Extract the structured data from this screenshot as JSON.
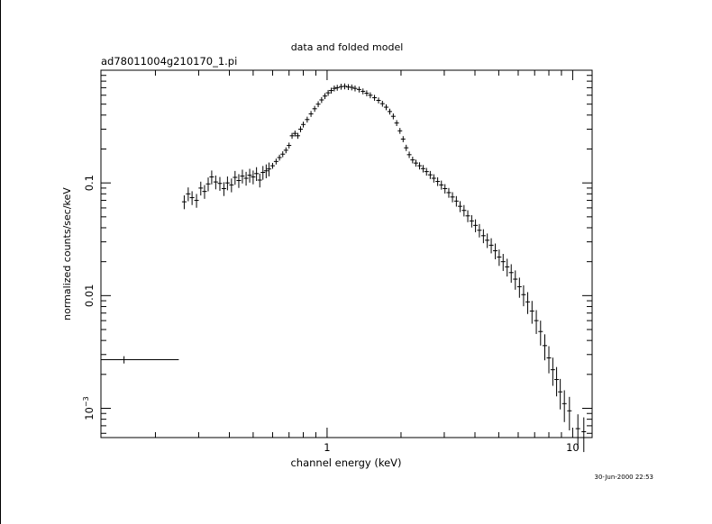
{
  "chart_data": {
    "type": "scatter",
    "title": "data and folded model",
    "subtitle": "ad78011004g210170_1.pi",
    "xlabel": "channel energy (keV)",
    "ylabel": "normalized counts/sec/keV",
    "timestamp": "30-Jun-2000 22:53",
    "x_scale": "log",
    "y_scale": "log",
    "xlim": [
      0.12,
      12.0
    ],
    "ylim": [
      0.00055,
      1.0
    ],
    "x_ticks": [
      {
        "value": 1,
        "label": "1"
      },
      {
        "value": 10,
        "label": "10"
      }
    ],
    "y_ticks": [
      {
        "value": 0.1,
        "label": "0.1"
      },
      {
        "value": 0.01,
        "label": "0.01"
      },
      {
        "value": 0.001,
        "label": "10",
        "sup": "−3"
      }
    ],
    "grid": false,
    "series": [
      {
        "style": "crosses",
        "points": [
          {
            "x": 0.149,
            "y": 0.0027,
            "xlo": 0.12,
            "xhi": 0.249,
            "dy": 0.0002
          },
          {
            "x": 0.262,
            "y": 0.068
          },
          {
            "x": 0.272,
            "y": 0.08
          },
          {
            "x": 0.282,
            "y": 0.074
          },
          {
            "x": 0.294,
            "y": 0.07
          },
          {
            "x": 0.306,
            "y": 0.09
          },
          {
            "x": 0.317,
            "y": 0.084
          },
          {
            "x": 0.328,
            "y": 0.098
          },
          {
            "x": 0.339,
            "y": 0.113
          },
          {
            "x": 0.352,
            "y": 0.102
          },
          {
            "x": 0.366,
            "y": 0.099
          },
          {
            "x": 0.38,
            "y": 0.089
          },
          {
            "x": 0.393,
            "y": 0.1
          },
          {
            "x": 0.408,
            "y": 0.096
          },
          {
            "x": 0.422,
            "y": 0.112
          },
          {
            "x": 0.437,
            "y": 0.105
          },
          {
            "x": 0.452,
            "y": 0.115
          },
          {
            "x": 0.468,
            "y": 0.11
          },
          {
            "x": 0.484,
            "y": 0.117
          },
          {
            "x": 0.5,
            "y": 0.113
          },
          {
            "x": 0.516,
            "y": 0.121
          },
          {
            "x": 0.532,
            "y": 0.106
          },
          {
            "x": 0.548,
            "y": 0.124
          },
          {
            "x": 0.565,
            "y": 0.128
          },
          {
            "x": 0.58,
            "y": 0.133
          },
          {
            "x": 0.6,
            "y": 0.142
          },
          {
            "x": 0.62,
            "y": 0.155
          },
          {
            "x": 0.64,
            "y": 0.168
          },
          {
            "x": 0.66,
            "y": 0.18
          },
          {
            "x": 0.68,
            "y": 0.195
          },
          {
            "x": 0.7,
            "y": 0.215
          },
          {
            "x": 0.72,
            "y": 0.262
          },
          {
            "x": 0.74,
            "y": 0.275
          },
          {
            "x": 0.76,
            "y": 0.262
          },
          {
            "x": 0.78,
            "y": 0.3
          },
          {
            "x": 0.8,
            "y": 0.33
          },
          {
            "x": 0.83,
            "y": 0.365
          },
          {
            "x": 0.86,
            "y": 0.41
          },
          {
            "x": 0.89,
            "y": 0.455
          },
          {
            "x": 0.92,
            "y": 0.5
          },
          {
            "x": 0.95,
            "y": 0.545
          },
          {
            "x": 0.98,
            "y": 0.59
          },
          {
            "x": 1.01,
            "y": 0.63
          },
          {
            "x": 1.04,
            "y": 0.66
          },
          {
            "x": 1.07,
            "y": 0.69
          },
          {
            "x": 1.1,
            "y": 0.7
          },
          {
            "x": 1.14,
            "y": 0.715
          },
          {
            "x": 1.18,
            "y": 0.72
          },
          {
            "x": 1.22,
            "y": 0.71
          },
          {
            "x": 1.26,
            "y": 0.705
          },
          {
            "x": 1.3,
            "y": 0.69
          },
          {
            "x": 1.35,
            "y": 0.675
          },
          {
            "x": 1.4,
            "y": 0.65
          },
          {
            "x": 1.45,
            "y": 0.625
          },
          {
            "x": 1.5,
            "y": 0.6
          },
          {
            "x": 1.56,
            "y": 0.57
          },
          {
            "x": 1.62,
            "y": 0.54
          },
          {
            "x": 1.68,
            "y": 0.505
          },
          {
            "x": 1.74,
            "y": 0.47
          },
          {
            "x": 1.8,
            "y": 0.43
          },
          {
            "x": 1.86,
            "y": 0.39
          },
          {
            "x": 1.92,
            "y": 0.34
          },
          {
            "x": 1.98,
            "y": 0.29
          },
          {
            "x": 2.04,
            "y": 0.245
          },
          {
            "x": 2.1,
            "y": 0.205
          },
          {
            "x": 2.16,
            "y": 0.178
          },
          {
            "x": 2.23,
            "y": 0.16
          },
          {
            "x": 2.3,
            "y": 0.15
          },
          {
            "x": 2.38,
            "y": 0.142
          },
          {
            "x": 2.46,
            "y": 0.134
          },
          {
            "x": 2.54,
            "y": 0.126
          },
          {
            "x": 2.63,
            "y": 0.118
          },
          {
            "x": 2.72,
            "y": 0.11
          },
          {
            "x": 2.82,
            "y": 0.103
          },
          {
            "x": 2.92,
            "y": 0.096
          },
          {
            "x": 3.02,
            "y": 0.089
          },
          {
            "x": 3.13,
            "y": 0.082
          },
          {
            "x": 3.24,
            "y": 0.075
          },
          {
            "x": 3.36,
            "y": 0.069
          },
          {
            "x": 3.48,
            "y": 0.062
          },
          {
            "x": 3.61,
            "y": 0.057
          },
          {
            "x": 3.74,
            "y": 0.051
          },
          {
            "x": 3.88,
            "y": 0.046
          },
          {
            "x": 4.02,
            "y": 0.042
          },
          {
            "x": 4.17,
            "y": 0.038
          },
          {
            "x": 4.33,
            "y": 0.034
          },
          {
            "x": 4.49,
            "y": 0.031
          },
          {
            "x": 4.66,
            "y": 0.028
          },
          {
            "x": 4.84,
            "y": 0.025
          },
          {
            "x": 5.02,
            "y": 0.022
          },
          {
            "x": 5.21,
            "y": 0.02
          },
          {
            "x": 5.41,
            "y": 0.018
          },
          {
            "x": 5.62,
            "y": 0.016
          },
          {
            "x": 5.84,
            "y": 0.014
          },
          {
            "x": 6.07,
            "y": 0.012
          },
          {
            "x": 6.31,
            "y": 0.0102
          },
          {
            "x": 6.56,
            "y": 0.0088
          },
          {
            "x": 6.83,
            "y": 0.0073
          },
          {
            "x": 7.11,
            "y": 0.006
          },
          {
            "x": 7.4,
            "y": 0.0048
          },
          {
            "x": 7.7,
            "y": 0.0036
          },
          {
            "x": 8.0,
            "y": 0.0028
          },
          {
            "x": 8.3,
            "y": 0.0022
          },
          {
            "x": 8.6,
            "y": 0.0018
          },
          {
            "x": 8.9,
            "y": 0.0014
          },
          {
            "x": 9.25,
            "y": 0.0011
          },
          {
            "x": 9.7,
            "y": 0.00095
          },
          {
            "x": 10.5,
            "y": 0.00066
          },
          {
            "x": 11.1,
            "y": 0.00062
          }
        ]
      }
    ]
  }
}
